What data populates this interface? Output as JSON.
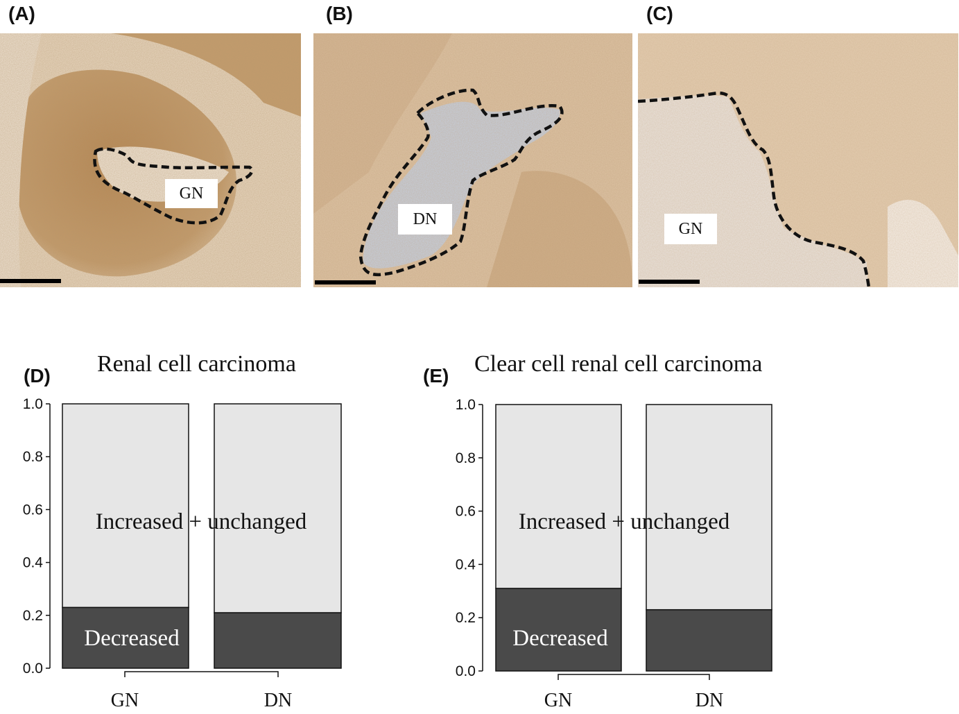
{
  "panels": {
    "A": {
      "label": "(A)",
      "region_label": "GN"
    },
    "B": {
      "label": "(B)",
      "region_label": "DN"
    },
    "C": {
      "label": "(C)",
      "region_label": "GN"
    },
    "D": {
      "label": "(D)"
    },
    "E": {
      "label": "(E)"
    }
  },
  "colors": {
    "tissue_dark": "#b98a55",
    "tissue_light": "#e7cfb3",
    "stroma_blue": "#c9d3e0",
    "bar_dark": "#4a4a4a",
    "bar_light": "#e6e6e6"
  },
  "chart_data": [
    {
      "type": "bar",
      "stacked": true,
      "title": "Renal cell carcinoma",
      "categories": [
        "GN",
        "DN"
      ],
      "series": [
        {
          "name": "Decreased",
          "values": [
            0.23,
            0.21
          ]
        },
        {
          "name": "Increased + unchanged",
          "values": [
            0.77,
            0.79
          ]
        }
      ],
      "ylim": [
        0,
        1
      ],
      "yticks": [
        "0.0",
        "0.2",
        "0.4",
        "0.6",
        "0.8",
        "1.0"
      ],
      "grid": false
    },
    {
      "type": "bar",
      "stacked": true,
      "title": "Clear cell renal cell carcinoma",
      "categories": [
        "GN",
        "DN"
      ],
      "series": [
        {
          "name": "Decreased",
          "values": [
            0.31,
            0.23
          ]
        },
        {
          "name": "Increased + unchanged",
          "values": [
            0.69,
            0.77
          ]
        }
      ],
      "ylim": [
        0,
        1
      ],
      "yticks": [
        "0.0",
        "0.2",
        "0.4",
        "0.6",
        "0.8",
        "1.0"
      ],
      "grid": false
    }
  ]
}
